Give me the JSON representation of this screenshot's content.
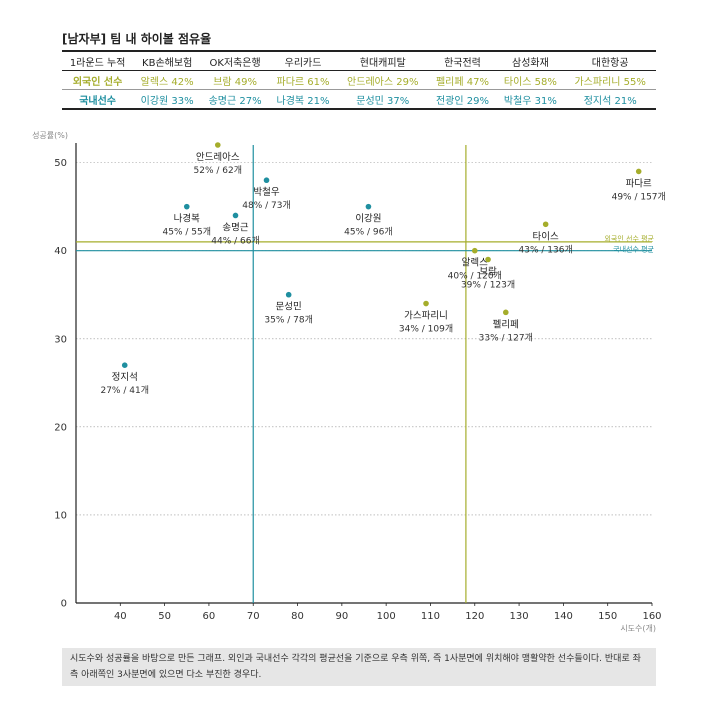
{
  "title": "[남자부] 팀 내 하이볼 점유율",
  "table": {
    "header": [
      "1라운드 누적",
      "KB손해보험",
      "OK저축은행",
      "우리카드",
      "현대캐피탈",
      "한국전력",
      "삼성화재",
      "대한항공"
    ],
    "rows": [
      {
        "label": "외국인 선수",
        "cells": [
          "알렉스 42%",
          "브람 49%",
          "파다르 61%",
          "안드레아스 29%",
          "펠리페 47%",
          "타이스 58%",
          "가스파리니 55%"
        ]
      },
      {
        "label": "국내선수",
        "cells": [
          "이강원 33%",
          "송명근 27%",
          "나경복 21%",
          "문성민 37%",
          "전광인 29%",
          "박철우 31%",
          "정지석 21%"
        ]
      }
    ]
  },
  "colors": {
    "foreign": "#a5ad2b",
    "domestic": "#1f8fa0"
  },
  "chart_data": {
    "type": "scatter",
    "xlabel": "시도수(개)",
    "ylabel": "성공률(%)",
    "xlim": [
      30,
      160
    ],
    "ylim": [
      0,
      52
    ],
    "xticks": [
      40,
      50,
      60,
      70,
      80,
      90,
      100,
      110,
      120,
      130,
      140,
      150,
      160
    ],
    "yticks": [
      0,
      10,
      20,
      30,
      40,
      50
    ],
    "grid": "horizontal",
    "series": [
      {
        "group": "foreign",
        "points": [
          {
            "name": "안드레아스",
            "label": "52% / 62개",
            "x": 62,
            "y": 52
          },
          {
            "name": "알렉스",
            "label": "40% / 120개",
            "x": 120,
            "y": 40
          },
          {
            "name": "브람",
            "label": "39% / 123개",
            "x": 123,
            "y": 39
          },
          {
            "name": "타이스",
            "label": "43% / 136개",
            "x": 136,
            "y": 43
          },
          {
            "name": "파다르",
            "label": "49% / 157개",
            "x": 157,
            "y": 49
          },
          {
            "name": "가스파리니",
            "label": "34% / 109개",
            "x": 109,
            "y": 34
          },
          {
            "name": "펠리페",
            "label": "33% / 127개",
            "x": 127,
            "y": 33
          }
        ]
      },
      {
        "group": "domestic",
        "points": [
          {
            "name": "박철우",
            "label": "48% / 73개",
            "x": 73,
            "y": 48
          },
          {
            "name": "나경복",
            "label": "45% / 55개",
            "x": 55,
            "y": 45
          },
          {
            "name": "송명근",
            "label": "44% / 66개",
            "x": 66,
            "y": 44
          },
          {
            "name": "이강원",
            "label": "45% / 96개",
            "x": 96,
            "y": 45
          },
          {
            "name": "문성민",
            "label": "35% / 78개",
            "x": 78,
            "y": 35
          },
          {
            "name": "정지석",
            "label": "27% / 41개",
            "x": 41,
            "y": 27
          }
        ]
      }
    ],
    "reference_lines": [
      {
        "group": "foreign",
        "label": "외국인 선수 평균",
        "x": 118,
        "y": 41
      },
      {
        "group": "domestic",
        "label": "국내선수 평균",
        "x": 70,
        "y": 40
      }
    ]
  },
  "annotation": "시도수와 성공률을 바탕으로 만든 그래프. 외인과 국내선수 각각의 평균선을 기준으로 우측 위쪽, 즉 1사분면에 위치해야 맹활약한 선수들이다. 반대로 좌측 아래쪽인 3사분면에 있으면 다소 부진한 경우다."
}
